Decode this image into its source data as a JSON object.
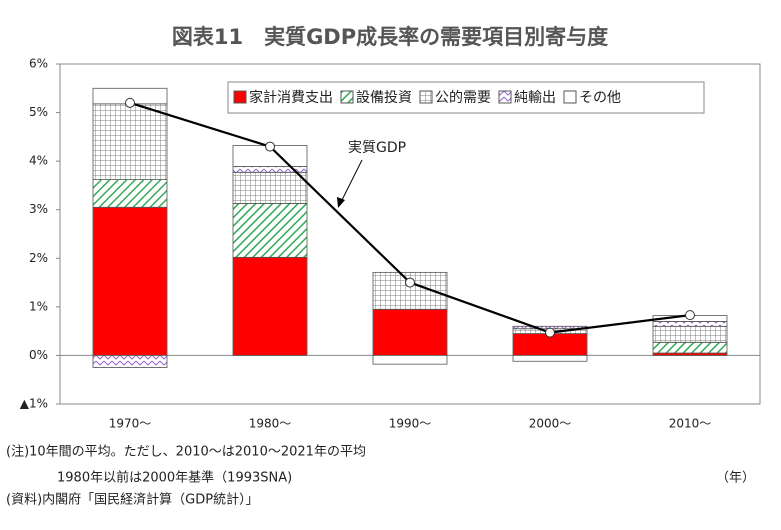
{
  "chart_data": {
    "type": "bar",
    "stacked": true,
    "title": "図表11　実質GDP成長率の需要項目別寄与度",
    "categories": [
      "1970～",
      "1980～",
      "1990～",
      "2000～",
      "2010～"
    ],
    "series": [
      {
        "name": "家計消費支出",
        "color": "#ff0000",
        "values": [
          3.05,
          2.02,
          0.95,
          0.45,
          0.05
        ]
      },
      {
        "name": "設備投資",
        "color": "#33aa55",
        "values": [
          0.57,
          1.11,
          0,
          0,
          0.22
        ]
      },
      {
        "name": "公的需要",
        "color": "#808080",
        "values": [
          1.56,
          0.64,
          0.76,
          0.1,
          0.33
        ]
      },
      {
        "name": "純輸出",
        "color": "#9966cc",
        "values": [
          -0.25,
          0.12,
          0,
          0.05,
          0.1
        ]
      },
      {
        "name": "その他",
        "color": "#ffffff",
        "values": [
          0.32,
          0.43,
          -0.18,
          -0.12,
          0.12
        ]
      },
      {
        "name": "実質GDP",
        "type": "line",
        "color": "#000000",
        "values": [
          5.2,
          4.3,
          1.5,
          0.47,
          0.83
        ]
      }
    ],
    "ylim": [
      -1,
      6
    ],
    "yticks": [
      {
        "value": -1,
        "label": "▲1%"
      },
      {
        "value": 0,
        "label": "0%"
      },
      {
        "value": 1,
        "label": "1%"
      },
      {
        "value": 2,
        "label": "2%"
      },
      {
        "value": 3,
        "label": "3%"
      },
      {
        "value": 4,
        "label": "4%"
      },
      {
        "value": 5,
        "label": "5%"
      },
      {
        "value": 6,
        "label": "6%"
      }
    ],
    "x_unit": "（年）",
    "notes": [
      "(注)10年間の平均。ただし、2010～は2010～2021年の平均",
      "1980年以前は2000年基準（1993SNA)",
      "(資料)内閣府「国民経済計算（GDP統計）」"
    ],
    "legend": "top-right"
  }
}
